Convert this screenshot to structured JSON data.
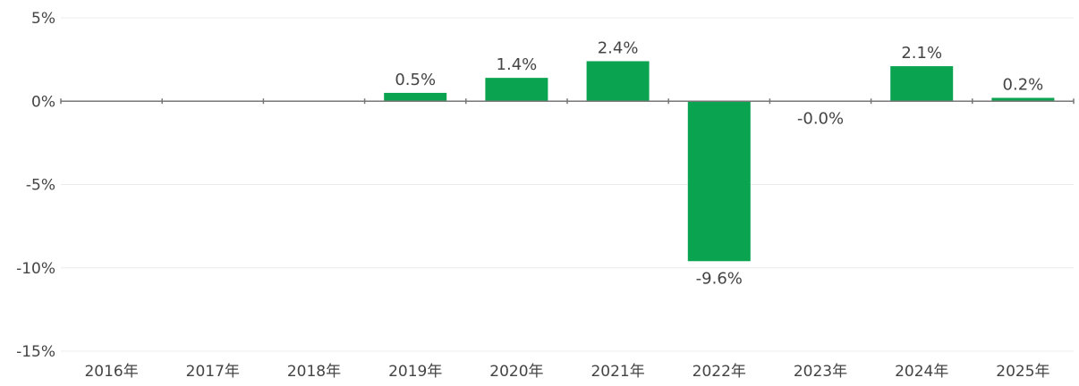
{
  "chart_data": {
    "type": "bar",
    "categories": [
      "2016年",
      "2017年",
      "2018年",
      "2019年",
      "2020年",
      "2021年",
      "2022年",
      "2023年",
      "2024年",
      "2025年"
    ],
    "values": [
      null,
      null,
      null,
      0.5,
      1.4,
      2.4,
      -9.6,
      -0.0,
      2.1,
      0.2
    ],
    "data_labels": [
      "",
      "",
      "",
      "0.5%",
      "1.4%",
      "2.4%",
      "-9.6%",
      "-0.0%",
      "2.1%",
      "0.2%"
    ],
    "ylim": [
      -15,
      5
    ],
    "yticks": [
      5,
      0,
      -5,
      -10,
      -15
    ],
    "ytick_labels": [
      "5%",
      "0%",
      "-5%",
      "-10%",
      "-15%"
    ],
    "grid": true,
    "legend": "none",
    "colors": {
      "bar": "#0aa34f",
      "grid": "#ececec",
      "zero_line": "#777777",
      "text": "#444444"
    }
  }
}
